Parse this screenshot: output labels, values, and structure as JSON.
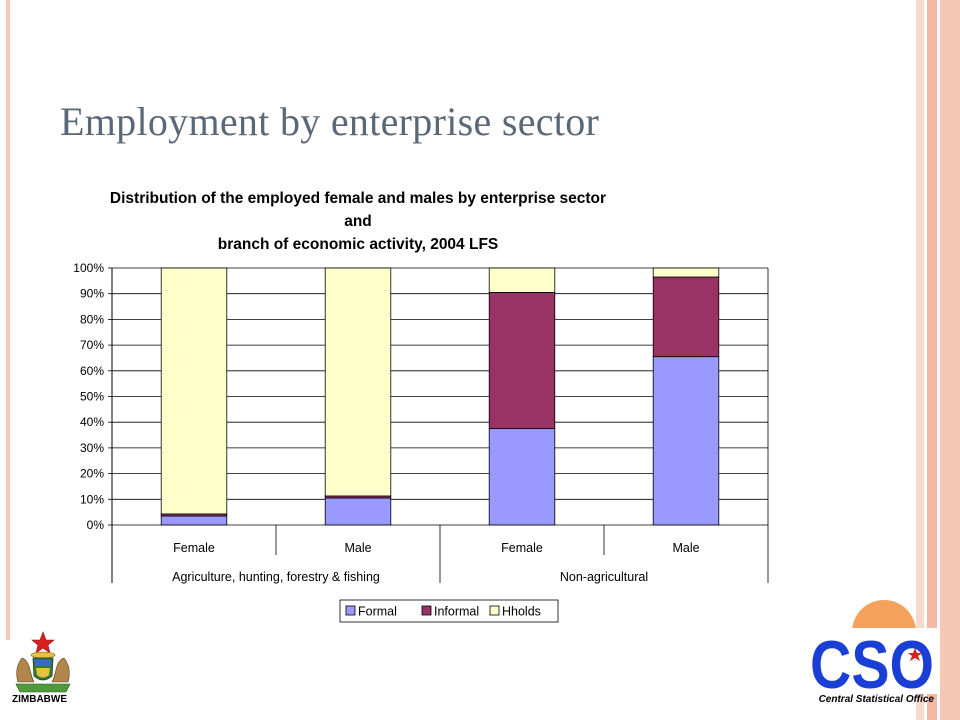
{
  "slide": {
    "title": "Employment by enterprise sector"
  },
  "chart_data": {
    "type": "bar",
    "stacked": "percent",
    "title_lines": [
      "Distribution of the employed female and males by enterprise sector and",
      "branch of economic activity, 2004 LFS"
    ],
    "categories": [
      "Female",
      "Male",
      "Female",
      "Male"
    ],
    "groups": [
      {
        "label": "Agriculture, hunting, forestry & fishing",
        "categories": [
          "Female",
          "Male"
        ]
      },
      {
        "label": "Non-agricultural",
        "categories": [
          "Female",
          "Male"
        ]
      }
    ],
    "series": [
      {
        "name": "Formal",
        "color": "#9999ff",
        "values": [
          3.5,
          10.5,
          37.5,
          65.5
        ]
      },
      {
        "name": "Informal",
        "color": "#993366",
        "values": [
          0.8,
          0.8,
          53.0,
          31.0
        ]
      },
      {
        "name": "Hholds",
        "color": "#ffffcc",
        "values": [
          95.7,
          88.7,
          9.5,
          3.5
        ]
      }
    ],
    "y_ticks": [
      "0%",
      "10%",
      "20%",
      "30%",
      "40%",
      "50%",
      "60%",
      "70%",
      "80%",
      "90%",
      "100%"
    ],
    "ylim": [
      0,
      100
    ],
    "grid": true,
    "legend_position": "bottom"
  },
  "footer": {
    "left_label": "ZIMBABWE",
    "right_label": "Central Statistical Office",
    "logo_text": "CSO"
  },
  "theme": {
    "accent_pink": "#f6c8b8",
    "cso_blue": "#1a3fd6",
    "cso_orange": "#f5a15e"
  }
}
